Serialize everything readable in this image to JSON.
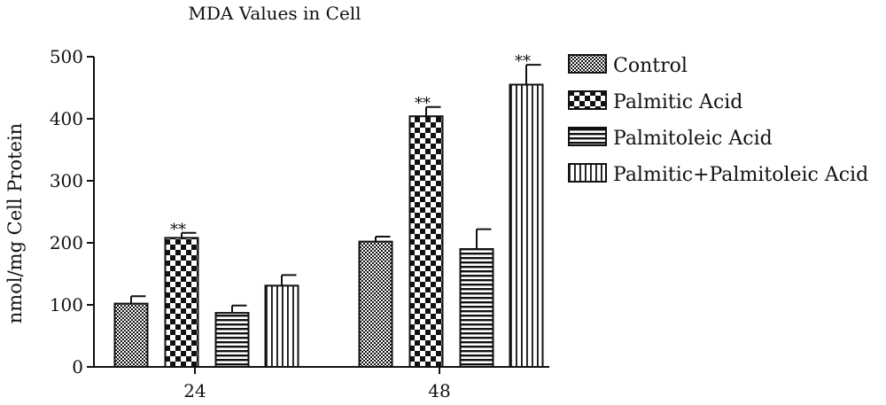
{
  "chart_data": {
    "type": "bar",
    "title": "MDA Values in Cell",
    "xlabel": "",
    "ylabel": "nmol/mg Cell Protein",
    "ylim": [
      0,
      500
    ],
    "yticks": [
      "0",
      "100",
      "200",
      "300",
      "400",
      "500"
    ],
    "categories": [
      "24",
      "48"
    ],
    "series": [
      {
        "name": "Control",
        "pattern": "dense-check",
        "values": [
          102,
          202
        ],
        "errors": [
          12,
          8
        ],
        "marks": [
          "",
          ""
        ]
      },
      {
        "name": "Palmitic Acid",
        "pattern": "checker",
        "values": [
          208,
          404
        ],
        "errors": [
          8,
          15
        ],
        "marks": [
          "**",
          "**"
        ]
      },
      {
        "name": "Palmitoleic Acid",
        "pattern": "horizontal",
        "values": [
          87,
          190
        ],
        "errors": [
          12,
          32
        ],
        "marks": [
          "",
          ""
        ]
      },
      {
        "name": "Palmitic+Palmitoleic Acid",
        "pattern": "vertical",
        "values": [
          131,
          455
        ],
        "errors": [
          17,
          32
        ],
        "marks": [
          "",
          "**"
        ]
      }
    ],
    "legend_position": "top-right",
    "grid": false
  }
}
